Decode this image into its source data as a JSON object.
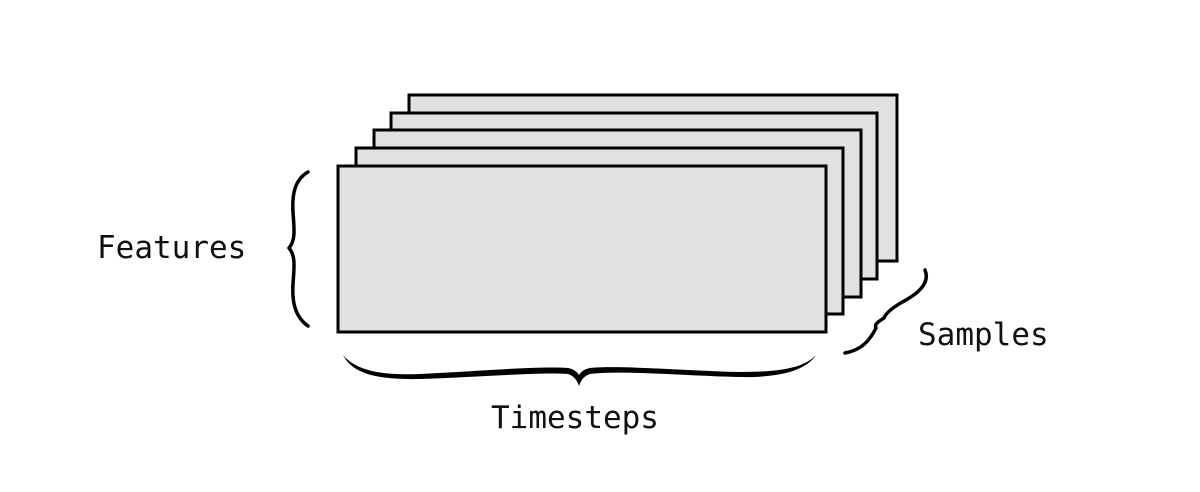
{
  "labels": {
    "features": "Features",
    "samples": "Samples",
    "timesteps": "Timesteps"
  },
  "colors": {
    "sheet_fill": "#e1e1e1",
    "stroke": "#000000",
    "background": "#ffffff"
  },
  "sheet_count": 5
}
